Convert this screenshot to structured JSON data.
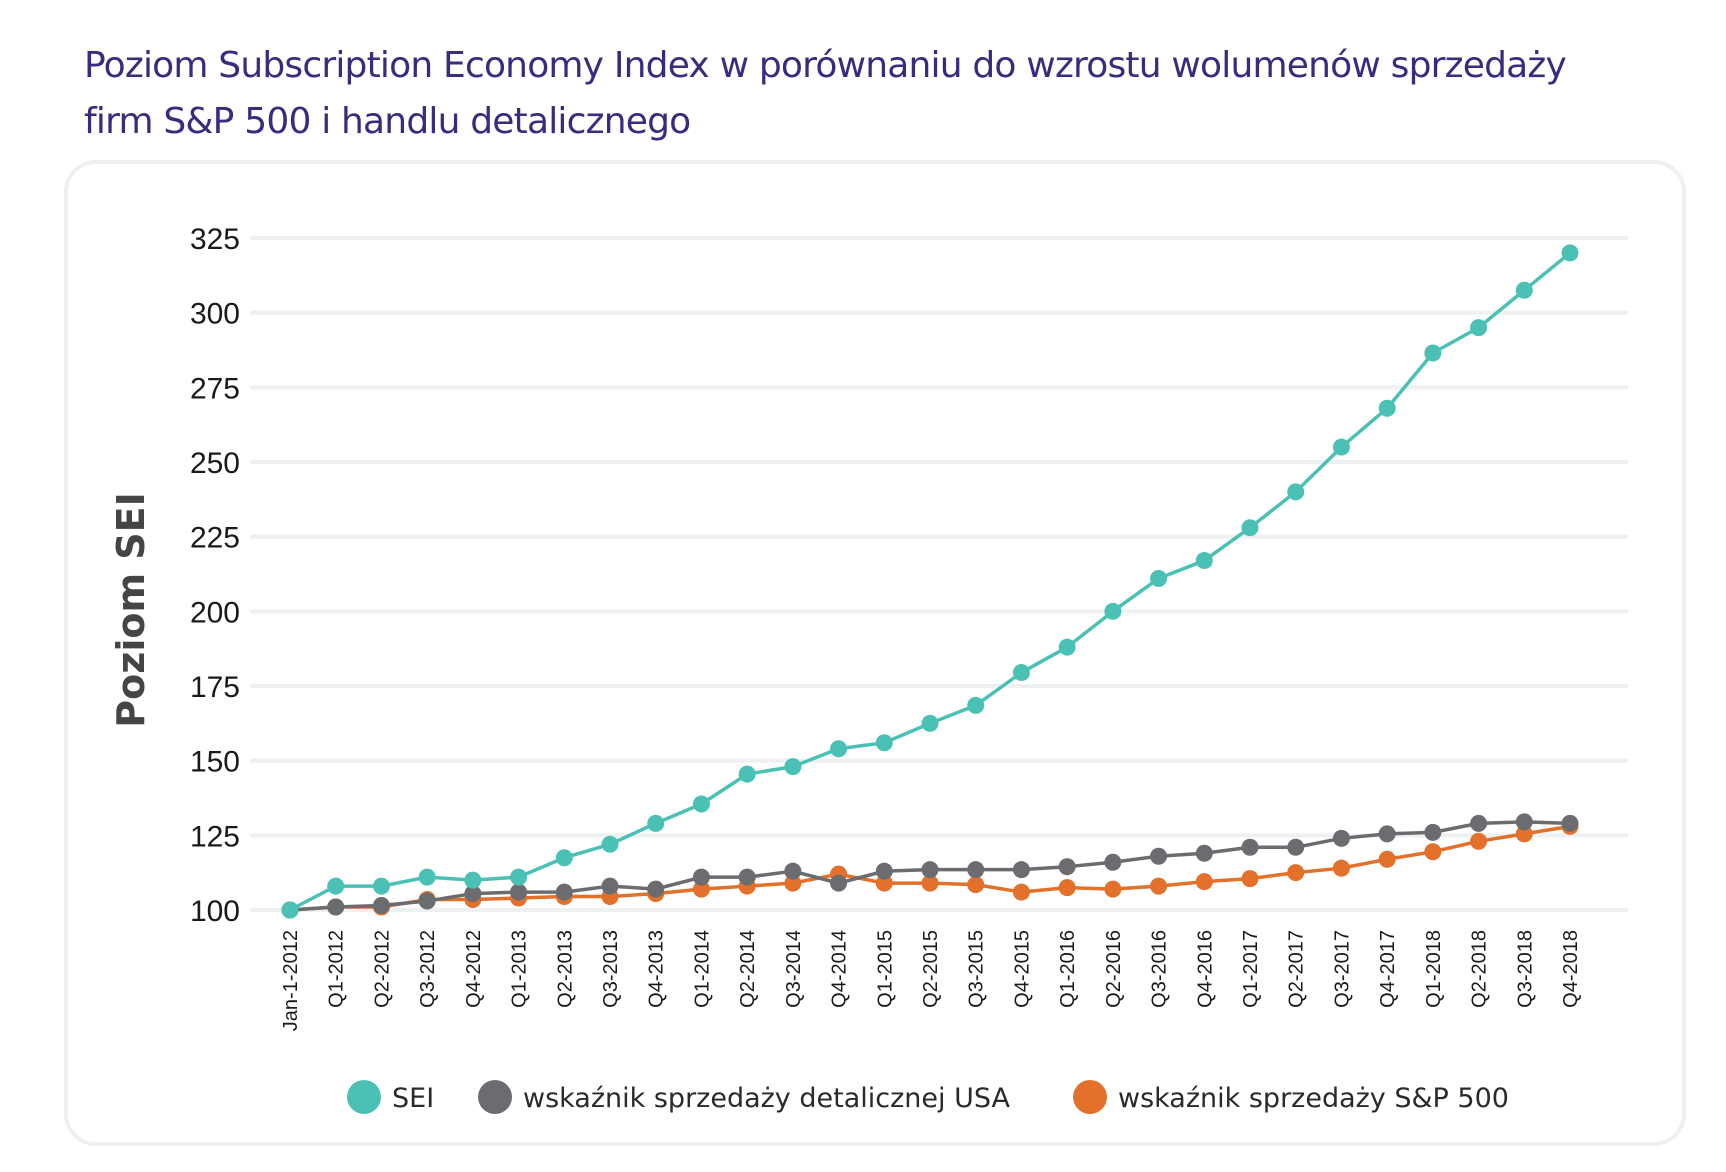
{
  "title_line1": "Poziom Subscription Economy Index w porównaniu do wzrostu wolumenów sprzedaży",
  "title_line2": "firm S&P 500 i handlu detalicznego",
  "chart_data": {
    "type": "line",
    "title": "Poziom Subscription Economy Index w porównaniu do wzrostu wolumenów sprzedaży firm S&P 500 i handlu detalicznego",
    "xlabel": "",
    "ylabel": "Poziom SEI",
    "ylim": [
      100,
      325
    ],
    "yticks": [
      100,
      125,
      150,
      175,
      200,
      225,
      250,
      275,
      300,
      325
    ],
    "grid": "horizontal",
    "legend_position": "bottom",
    "categories": [
      "Jan-1-2012",
      "Q1-2012",
      "Q2-2012",
      "Q3-2012",
      "Q4-2012",
      "Q1-2013",
      "Q2-2013",
      "Q3-2013",
      "Q4-2013",
      "Q1-2014",
      "Q2-2014",
      "Q3-2014",
      "Q4-2014",
      "Q1-2015",
      "Q2-2015",
      "Q3-2015",
      "Q4-2015",
      "Q1-2016",
      "Q2-2016",
      "Q3-2016",
      "Q4-2016",
      "Q1-2017",
      "Q2-2017",
      "Q3-2017",
      "Q4-2017",
      "Q1-2018",
      "Q2-2018",
      "Q3-2018",
      "Q4-2018"
    ],
    "series": [
      {
        "name": "wskaźnik sprzedaży S&P 500",
        "color": "#e3702b",
        "values": [
          100,
          101,
          101,
          103.5,
          103.5,
          104,
          104.5,
          104.5,
          105.5,
          107,
          108,
          109,
          112,
          109,
          109,
          108.5,
          106,
          107.5,
          107,
          108,
          109.5,
          110.5,
          112.5,
          114,
          117,
          119.5,
          123,
          125.5,
          128
        ]
      },
      {
        "name": "wskaźnik sprzedaży detalicznej USA",
        "color": "#6b6c70",
        "values": [
          100,
          101,
          101.5,
          103,
          105.5,
          106,
          106,
          108,
          107,
          111,
          111,
          113,
          109,
          113,
          113.5,
          113.5,
          113.5,
          114.5,
          116,
          118,
          119,
          121,
          121,
          124,
          125.5,
          126,
          129,
          129.5,
          129
        ]
      },
      {
        "name": "SEI",
        "color": "#4bc1b6",
        "values": [
          100,
          108,
          108,
          111,
          110,
          111,
          117.5,
          122,
          129,
          135.5,
          145.5,
          148,
          154,
          156,
          162.5,
          168.5,
          179.5,
          188,
          200,
          211,
          217,
          228,
          240,
          255,
          268,
          286.5,
          295,
          307.5,
          320
        ]
      }
    ],
    "legend": [
      {
        "label": "SEI",
        "color": "#4bc1b6"
      },
      {
        "label": "wskaźnik sprzedaży detalicznej USA",
        "color": "#6b6c70"
      },
      {
        "label": "wskaźnik sprzedaży S&P 500",
        "color": "#e3702b"
      }
    ]
  }
}
